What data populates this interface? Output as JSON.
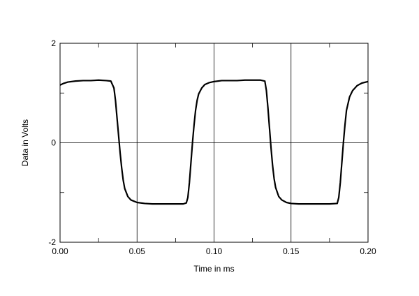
{
  "chart_data": {
    "type": "line",
    "xlabel": "Time in ms",
    "ylabel": "Data in Volts",
    "xlim": [
      0.0,
      0.2
    ],
    "ylim": [
      -2,
      2
    ],
    "x_tick_labels": [
      "0.00",
      "0.05",
      "0.10",
      "0.15",
      "0.20"
    ],
    "x_ticks": [
      0.0,
      0.05,
      0.1,
      0.15,
      0.2
    ],
    "y_tick_labels": [
      "2",
      "0",
      "-2"
    ],
    "y_ticks": [
      2,
      0,
      -2
    ],
    "y_minor_ticks": [
      1,
      -1
    ],
    "grid": true,
    "series": [
      {
        "x": [
          0.0,
          0.002,
          0.005,
          0.01,
          0.015,
          0.02,
          0.025,
          0.03,
          0.033,
          0.035,
          0.036,
          0.037,
          0.038,
          0.039,
          0.04,
          0.041,
          0.042,
          0.044,
          0.046,
          0.05,
          0.055,
          0.06,
          0.065,
          0.07,
          0.075,
          0.08,
          0.082,
          0.083,
          0.084,
          0.085,
          0.086,
          0.087,
          0.088,
          0.089,
          0.09,
          0.092,
          0.094,
          0.097,
          0.1,
          0.105,
          0.11,
          0.115,
          0.12,
          0.125,
          0.13,
          0.133,
          0.134,
          0.135,
          0.136,
          0.137,
          0.138,
          0.139,
          0.14,
          0.142,
          0.144,
          0.147,
          0.15,
          0.155,
          0.16,
          0.165,
          0.17,
          0.175,
          0.18,
          0.181,
          0.182,
          0.183,
          0.184,
          0.185,
          0.186,
          0.188,
          0.19,
          0.193,
          0.196,
          0.2
        ],
        "y": [
          1.16,
          1.19,
          1.22,
          1.24,
          1.25,
          1.25,
          1.26,
          1.25,
          1.24,
          1.1,
          0.85,
          0.5,
          0.15,
          -0.2,
          -0.5,
          -0.75,
          -0.92,
          -1.08,
          -1.15,
          -1.2,
          -1.22,
          -1.23,
          -1.23,
          -1.23,
          -1.23,
          -1.23,
          -1.21,
          -1.1,
          -0.8,
          -0.4,
          0.0,
          0.35,
          0.65,
          0.85,
          0.98,
          1.1,
          1.17,
          1.21,
          1.23,
          1.25,
          1.25,
          1.25,
          1.26,
          1.26,
          1.26,
          1.24,
          1.05,
          0.7,
          0.3,
          -0.1,
          -0.45,
          -0.72,
          -0.9,
          -1.08,
          -1.15,
          -1.2,
          -1.22,
          -1.23,
          -1.23,
          -1.23,
          -1.23,
          -1.23,
          -1.22,
          -1.1,
          -0.8,
          -0.4,
          0.0,
          0.35,
          0.65,
          0.92,
          1.05,
          1.15,
          1.2,
          1.23
        ]
      }
    ],
    "line_color": "#000000",
    "grid_color": "#000000"
  }
}
